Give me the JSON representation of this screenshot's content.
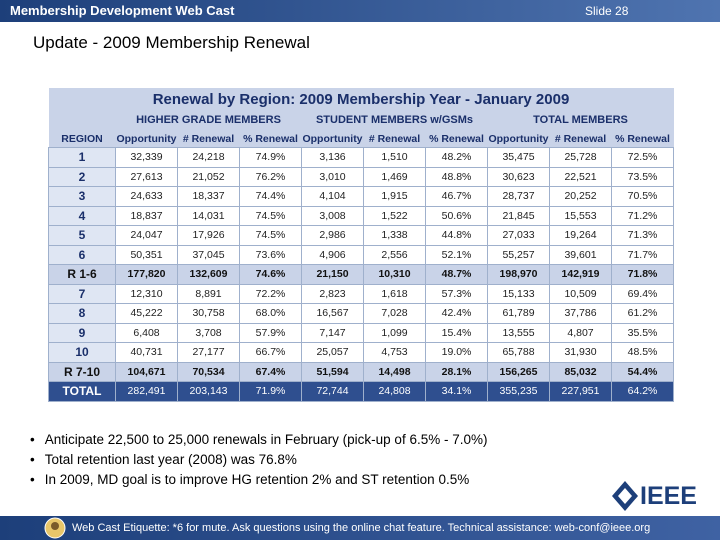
{
  "header": {
    "title": "Membership Development Web Cast",
    "slide": "Slide 28"
  },
  "title": "Update - 2009 Membership Renewal",
  "table": {
    "title": "Renewal by Region: 2009 Membership Year - January 2009",
    "groups": [
      "HIGHER GRADE MEMBERS",
      "STUDENT MEMBERS w/GSMs",
      "TOTAL MEMBERS"
    ],
    "columns": [
      "REGION",
      "Opportunity",
      "# Renewal",
      "% Renewal",
      "Opportunity",
      "# Renewal",
      "% Renewal",
      "Opportunity",
      "# Renewal",
      "% Renewal"
    ],
    "rows": [
      [
        "1",
        "32,339",
        "24,218",
        "74.9%",
        "3,136",
        "1,510",
        "48.2%",
        "35,475",
        "25,728",
        "72.5%"
      ],
      [
        "2",
        "27,613",
        "21,052",
        "76.2%",
        "3,010",
        "1,469",
        "48.8%",
        "30,623",
        "22,521",
        "73.5%"
      ],
      [
        "3",
        "24,633",
        "18,337",
        "74.4%",
        "4,104",
        "1,915",
        "46.7%",
        "28,737",
        "20,252",
        "70.5%"
      ],
      [
        "4",
        "18,837",
        "14,031",
        "74.5%",
        "3,008",
        "1,522",
        "50.6%",
        "21,845",
        "15,553",
        "71.2%"
      ],
      [
        "5",
        "24,047",
        "17,926",
        "74.5%",
        "2,986",
        "1,338",
        "44.8%",
        "27,033",
        "19,264",
        "71.3%"
      ],
      [
        "6",
        "50,351",
        "37,045",
        "73.6%",
        "4,906",
        "2,556",
        "52.1%",
        "55,257",
        "39,601",
        "71.7%"
      ],
      [
        "R 1-6",
        "177,820",
        "132,609",
        "74.6%",
        "21,150",
        "10,310",
        "48.7%",
        "198,970",
        "142,919",
        "71.8%"
      ],
      [
        "7",
        "12,310",
        "8,891",
        "72.2%",
        "2,823",
        "1,618",
        "57.3%",
        "15,133",
        "10,509",
        "69.4%"
      ],
      [
        "8",
        "45,222",
        "30,758",
        "68.0%",
        "16,567",
        "7,028",
        "42.4%",
        "61,789",
        "37,786",
        "61.2%"
      ],
      [
        "9",
        "6,408",
        "3,708",
        "57.9%",
        "7,147",
        "1,099",
        "15.4%",
        "13,555",
        "4,807",
        "35.5%"
      ],
      [
        "10",
        "40,731",
        "27,177",
        "66.7%",
        "25,057",
        "4,753",
        "19.0%",
        "65,788",
        "31,930",
        "48.5%"
      ],
      [
        "R 7-10",
        "104,671",
        "70,534",
        "67.4%",
        "51,594",
        "14,498",
        "28.1%",
        "156,265",
        "85,032",
        "54.4%"
      ],
      [
        "TOTAL",
        "282,491",
        "203,143",
        "71.9%",
        "72,744",
        "24,808",
        "34.1%",
        "355,235",
        "227,951",
        "64.2%"
      ]
    ]
  },
  "bullets": [
    "Anticipate 22,500 to 25,000 renewals in February (pick-up of 6.5% - 7.0%)",
    "Total retention last year (2008) was 76.8%",
    "In 2009, MD goal is to improve HG retention 2% and ST retention 0.5%"
  ],
  "logo": "IEEE",
  "footer": "Web Cast Etiquette: *6 for mute. Ask questions using the online chat feature. Technical assistance: web-conf@ieee.org"
}
